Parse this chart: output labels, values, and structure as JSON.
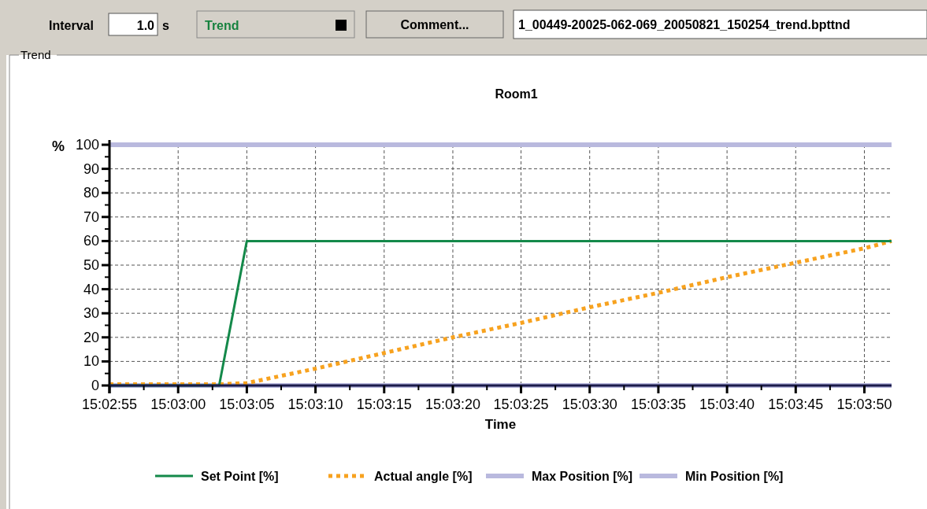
{
  "chart_data": {
    "type": "line",
    "title": "Room1",
    "xlabel": "Time",
    "ylabel": "%",
    "annotations": [
      "Interval",
      "1.0",
      "s",
      "Trend",
      "Comment...",
      "1_00449-20025-062-069_20050821_150254_trend.bpttnd",
      "Trend"
    ],
    "xlim": [
      15.04861,
      15.06444
    ],
    "ylim": [
      0,
      100
    ],
    "xticks": [
      {
        "value": 15.04861,
        "label": "15:02:55"
      },
      {
        "value": 15.05,
        "label": "15:03:00"
      },
      {
        "value": 15.05139,
        "label": "15:03:05"
      },
      {
        "value": 15.05278,
        "label": "15:03:10"
      },
      {
        "value": 15.05417,
        "label": "15:03:15"
      },
      {
        "value": 15.05556,
        "label": "15:03:20"
      },
      {
        "value": 15.05694,
        "label": "15:03:25"
      },
      {
        "value": 15.05833,
        "label": "15:03:30"
      },
      {
        "value": 15.05972,
        "label": "15:03:35"
      },
      {
        "value": 15.06111,
        "label": "15:03:40"
      },
      {
        "value": 15.0625,
        "label": "15:03:45"
      },
      {
        "value": 15.06389,
        "label": "15:03:50"
      }
    ],
    "yticks": [
      0,
      10,
      20,
      30,
      40,
      50,
      60,
      70,
      80,
      90,
      100
    ],
    "grid": true,
    "legend": "bottom",
    "marker": "none",
    "series": [
      {
        "name": "Set Point [%]",
        "color": "#14894a",
        "line_style": "solid",
        "x": [
          15.04861,
          15.05083,
          15.05139,
          15.06444
        ],
        "values": [
          0,
          0,
          60,
          60
        ]
      },
      {
        "name": "Actual angle [%]",
        "color": "#f7a21f",
        "line_style": "dotted",
        "x": [
          15.04861,
          15.05083,
          15.05139,
          15.05278,
          15.05417,
          15.05556,
          15.05694,
          15.05833,
          15.05972,
          15.06111,
          15.0625,
          15.06389,
          15.06444
        ],
        "values": [
          0.5,
          0.5,
          1,
          7,
          13.5,
          20,
          26,
          32.5,
          38.5,
          45,
          51,
          57,
          60
        ]
      },
      {
        "name": "Max Position [%]",
        "color": "#b9b9de",
        "line_style": "solid",
        "x": [
          15.04861,
          15.06444
        ],
        "values": [
          100,
          100
        ]
      },
      {
        "name": "Min Position [%]",
        "color": "#b9b9de",
        "line_style": "solid",
        "x": [
          15.04861,
          15.06444
        ],
        "values": [
          0,
          0
        ]
      }
    ]
  }
}
